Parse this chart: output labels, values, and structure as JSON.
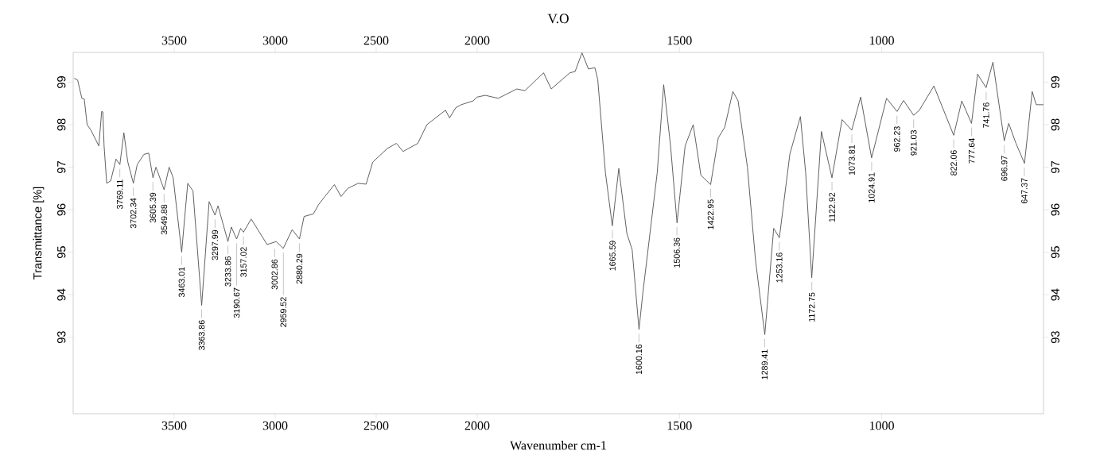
{
  "chart_data": [
    {
      "type": "line",
      "ylabel": "Transmittance [%]",
      "xlim": [
        4000,
        2000
      ],
      "x2lim": [
        4000,
        2000
      ],
      "ylim": [
        91.2,
        99.7
      ],
      "xticks": [
        3500,
        3000,
        2500
      ],
      "x2ticks": [
        3500,
        3000,
        2500
      ],
      "yticks": [
        93,
        94,
        95,
        96,
        97,
        98,
        99
      ],
      "series": [
        {
          "color": "#555555",
          "x": [
            3995,
            3978,
            3957,
            3945,
            3931,
            3912,
            3873,
            3859,
            3853,
            3847,
            3834,
            3814,
            3788,
            3769,
            3749,
            3730,
            3702,
            3683,
            3650,
            3626,
            3605,
            3590,
            3550,
            3525,
            3505,
            3463,
            3433,
            3407,
            3364,
            3327,
            3298,
            3283,
            3234,
            3217,
            3191,
            3171,
            3157,
            3119,
            3040,
            2995,
            2960,
            2916,
            2880,
            2857,
            2811,
            2785,
            2754,
            2707,
            2674,
            2641,
            2589,
            2550,
            2517,
            2445,
            2400,
            2367,
            2294,
            2249,
            2157,
            2137,
            2106,
            2079,
            2020,
            2000
          ],
          "values": [
            99.09,
            99.05,
            98.62,
            98.6,
            98.0,
            97.87,
            97.5,
            98.31,
            98.3,
            97.5,
            96.62,
            96.68,
            97.19,
            97.06,
            97.81,
            97.13,
            96.62,
            97.06,
            97.3,
            97.33,
            96.75,
            97.0,
            96.47,
            97.0,
            96.75,
            95.0,
            96.62,
            96.44,
            93.75,
            96.19,
            95.87,
            96.09,
            95.25,
            95.59,
            95.31,
            95.56,
            95.47,
            95.78,
            95.18,
            95.25,
            95.09,
            95.53,
            95.31,
            95.84,
            95.9,
            96.12,
            96.31,
            96.59,
            96.31,
            96.5,
            96.62,
            96.6,
            97.12,
            97.44,
            97.56,
            97.37,
            97.56,
            98.0,
            98.34,
            98.16,
            98.4,
            98.47,
            98.56,
            98.65
          ]
        }
      ],
      "annotations": [
        {
          "text": "3769.11",
          "x": 3769.11,
          "y": 97.06
        },
        {
          "text": "3702.34",
          "x": 3702.34,
          "y": 96.62
        },
        {
          "text": "3605.39",
          "x": 3605.39,
          "y": 96.75
        },
        {
          "text": "3549.88",
          "x": 3549.88,
          "y": 96.47
        },
        {
          "text": "3463.01",
          "x": 3463.01,
          "y": 95.0
        },
        {
          "text": "3363.86",
          "x": 3363.86,
          "y": 93.75
        },
        {
          "text": "3297.99",
          "x": 3297.99,
          "y": 95.87
        },
        {
          "text": "3233.86",
          "x": 3233.86,
          "y": 95.25
        },
        {
          "text": "3190.67",
          "x": 3190.67,
          "y": 95.31
        },
        {
          "text": "3157.02",
          "x": 3157.02,
          "y": 95.47
        },
        {
          "text": "3002.86",
          "x": 3002.86,
          "y": 95.18
        },
        {
          "text": "2959.52",
          "x": 2959.52,
          "y": 95.09
        },
        {
          "text": "2880.29",
          "x": 2880.29,
          "y": 95.31
        }
      ]
    },
    {
      "type": "line",
      "title": "V.O",
      "xlabel": "Wavenumber cm-1",
      "xlim": [
        2000,
        600
      ],
      "x2lim": [
        2000,
        600
      ],
      "ylim": [
        91.2,
        99.7
      ],
      "y2lim": [
        91.2,
        99.7
      ],
      "xticks": [
        2000,
        1500,
        1000
      ],
      "x2ticks": [
        2000,
        1500,
        1000
      ],
      "y2ticks": [
        93,
        94,
        95,
        96,
        97,
        98,
        99
      ],
      "series": [
        {
          "color": "#555555",
          "x": [
            2000,
            1980,
            1948,
            1902,
            1882,
            1836,
            1817,
            1771,
            1758,
            1741,
            1725,
            1709,
            1702,
            1683,
            1666,
            1650,
            1630,
            1617,
            1600,
            1591,
            1555,
            1539,
            1522,
            1506,
            1486,
            1466,
            1447,
            1423,
            1404,
            1388,
            1368,
            1355,
            1332,
            1312,
            1289,
            1267,
            1253,
            1227,
            1201,
            1188,
            1173,
            1149,
            1123,
            1098,
            1074,
            1052,
            1025,
            988,
            962,
            946,
            921,
            907,
            871,
            822,
            802,
            778,
            763,
            742,
            725,
            697,
            686,
            668,
            647,
            628,
            618,
            600
          ],
          "values": [
            98.65,
            98.69,
            98.62,
            98.84,
            98.8,
            99.22,
            98.84,
            99.22,
            99.25,
            99.69,
            99.31,
            99.34,
            99.06,
            96.87,
            95.62,
            96.97,
            95.44,
            95.06,
            93.18,
            94.0,
            96.87,
            98.94,
            97.5,
            95.69,
            97.5,
            98.0,
            96.81,
            96.59,
            97.69,
            97.94,
            98.78,
            98.56,
            97.0,
            94.81,
            93.06,
            95.56,
            95.34,
            97.31,
            98.19,
            96.87,
            94.4,
            97.84,
            96.75,
            98.12,
            97.87,
            98.65,
            97.22,
            98.62,
            98.31,
            98.57,
            98.22,
            98.34,
            98.91,
            97.75,
            98.56,
            98.03,
            99.19,
            98.87,
            99.47,
            97.62,
            98.03,
            97.56,
            97.09,
            98.78,
            98.47,
            98.47
          ]
        }
      ],
      "annotations": [
        {
          "text": "1665.59",
          "x": 1665.59,
          "y": 95.62
        },
        {
          "text": "1600.16",
          "x": 1600.16,
          "y": 93.18
        },
        {
          "text": "1506.36",
          "x": 1506.36,
          "y": 95.69
        },
        {
          "text": "1422.95",
          "x": 1422.95,
          "y": 96.59
        },
        {
          "text": "1289.41",
          "x": 1289.41,
          "y": 93.06
        },
        {
          "text": "1253.16",
          "x": 1253.16,
          "y": 95.34
        },
        {
          "text": "1172.75",
          "x": 1172.75,
          "y": 94.4
        },
        {
          "text": "1122.92",
          "x": 1122.92,
          "y": 96.75
        },
        {
          "text": "1073.81",
          "x": 1073.81,
          "y": 97.87
        },
        {
          "text": "1024.91",
          "x": 1024.91,
          "y": 97.22
        },
        {
          "text": "962.23",
          "x": 962.23,
          "y": 98.31
        },
        {
          "text": "921.03",
          "x": 921.03,
          "y": 98.22
        },
        {
          "text": "822.06",
          "x": 822.06,
          "y": 97.75
        },
        {
          "text": "777.64",
          "x": 777.64,
          "y": 98.03
        },
        {
          "text": "741.76",
          "x": 741.76,
          "y": 98.87
        },
        {
          "text": "696.97",
          "x": 696.97,
          "y": 97.62
        },
        {
          "text": "647.37",
          "x": 647.37,
          "y": 97.09
        }
      ]
    }
  ]
}
